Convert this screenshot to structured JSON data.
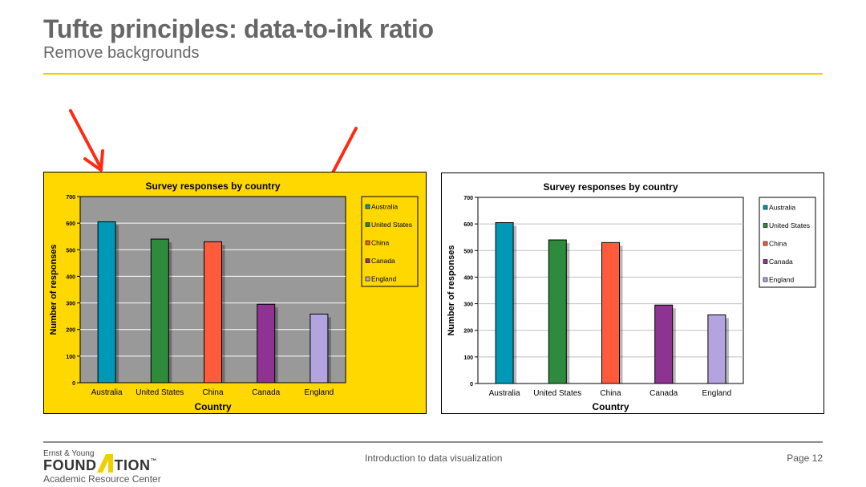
{
  "slide": {
    "title": "Tufte principles: data-to-ink ratio",
    "subtitle": "Remove backgrounds"
  },
  "footer": {
    "center": "Introduction to data visualization",
    "page": "Page 12",
    "logo_line1": "Ernst & Young",
    "logo_word_left": "FOUND",
    "logo_word_right": "TION",
    "logo_tm": "™",
    "logo_line3": "Academic Resource Center"
  },
  "colors": {
    "accent_rule": "#f0cf00",
    "arrow": "#ff2a12",
    "yellow_background": "#ffd800",
    "gray_plot": "#999999"
  },
  "chart_data": [
    {
      "type": "bar",
      "variant": "with-backgrounds",
      "title": "Survey responses by country",
      "xlabel": "Country",
      "ylabel": "Number of responses",
      "categories": [
        "Australia",
        "United States",
        "China",
        "Canada",
        "England"
      ],
      "values": [
        605,
        540,
        530,
        295,
        258
      ],
      "colors": [
        "#0098b8",
        "#2e8b3d",
        "#ff5a3c",
        "#8e3391",
        "#b3a4e0"
      ],
      "yticks": [
        0,
        100,
        200,
        300,
        400,
        500,
        600,
        700
      ],
      "ylim": [
        0,
        700
      ],
      "grid": true,
      "legend": [
        "Australia",
        "United States",
        "China",
        "Canada",
        "England"
      ],
      "legend_position": "right",
      "chart_background": "#ffd800",
      "plot_background": "#999999"
    },
    {
      "type": "bar",
      "variant": "backgrounds-removed",
      "title": "Survey responses by country",
      "xlabel": "Country",
      "ylabel": "Number of responses",
      "categories": [
        "Australia",
        "United States",
        "China",
        "Canada",
        "England"
      ],
      "values": [
        605,
        540,
        530,
        295,
        258
      ],
      "colors": [
        "#0098b8",
        "#2e8b3d",
        "#ff5a3c",
        "#8e3391",
        "#b3a4e0"
      ],
      "yticks": [
        0,
        100,
        200,
        300,
        400,
        500,
        600,
        700
      ],
      "ylim": [
        0,
        700
      ],
      "grid": true,
      "legend": [
        "Australia",
        "United States",
        "China",
        "Canada",
        "England"
      ],
      "legend_position": "right",
      "chart_background": "#ffffff",
      "plot_background": "#ffffff"
    }
  ]
}
